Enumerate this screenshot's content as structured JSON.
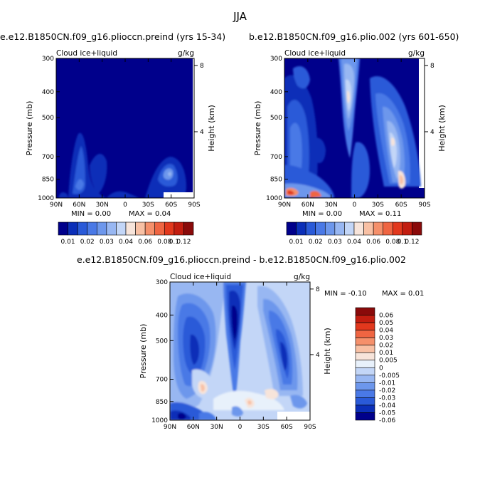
{
  "title": "JJA",
  "panels": [
    {
      "title": "e.e12.B1850CN.f09_g16.plioccn.preind (yrs 15-34)",
      "left_label": "Cloud ice+liquid",
      "right_label": "g/kg",
      "ylabel": "Pressure (mb)",
      "y2label": "Height (km)",
      "min_text": "MIN =   0.00",
      "max_text": "MAX =   0.04"
    },
    {
      "title": "b.e12.B1850CN.f09_g16.plio.002 (yrs 601-650)",
      "left_label": "Cloud ice+liquid",
      "right_label": "g/kg",
      "ylabel": "Pressure (mb)",
      "y2label": "Height (km)",
      "min_text": "MIN =   0.00",
      "max_text": "MAX =   0.11"
    },
    {
      "title": "e.e12.B1850CN.f09_g16.plioccn.preind - b.e12.B1850CN.f09_g16.plio.002",
      "left_label": "Cloud ice+liquid",
      "right_label": "g/kg",
      "ylabel": "Pressure (mb)",
      "y2label": "Height (km)",
      "min_text": "MIN =   -0.10",
      "max_text": "MAX =   0.01"
    }
  ],
  "chart_data": {
    "type": "heatmap",
    "x_ticks": [
      "90N",
      "60N",
      "30N",
      "0",
      "30S",
      "60S",
      "90S"
    ],
    "y_ticks": [
      "300",
      "400",
      "500",
      "700",
      "850",
      "1000"
    ],
    "y_tick_values": [
      300,
      400,
      500,
      700,
      850,
      1000
    ],
    "height_ticks": [
      "8",
      "4"
    ],
    "height_tick_values": [
      8,
      4
    ],
    "ylim": [
      1000,
      300
    ],
    "xlim": [
      "90N",
      "90S"
    ],
    "y_scale": "log",
    "colorbar_abs": {
      "labels": [
        "0.01",
        "0.02",
        "0.03",
        "0.04",
        "0.06",
        "0.08",
        "0.1",
        "0.12"
      ],
      "colors": [
        "#00008b",
        "#0b2fb8",
        "#2a5ad8",
        "#4a79e6",
        "#6d97ec",
        "#98b7f2",
        "#c3d6f7",
        "#f7e4da",
        "#f8c0a4",
        "#f5906b",
        "#ef6542",
        "#e2381d",
        "#c21d10",
        "#8a0a0a"
      ]
    },
    "colorbar_diff": {
      "labels": [
        "0.06",
        "0.05",
        "0.04",
        "0.03",
        "0.02",
        "0.01",
        "0.005",
        "0",
        "-0.005",
        "-0.01",
        "-0.02",
        "-0.03",
        "-0.04",
        "-0.05",
        "-0.06"
      ],
      "colors": [
        "#8a0a0a",
        "#c21d10",
        "#e2381d",
        "#ef6542",
        "#f5906b",
        "#f8c0a4",
        "#f7e4da",
        "#e8f1fb",
        "#c3d6f7",
        "#98b7f2",
        "#6d97ec",
        "#4a79e6",
        "#2a5ad8",
        "#0b2fb8",
        "#00008b"
      ]
    }
  }
}
